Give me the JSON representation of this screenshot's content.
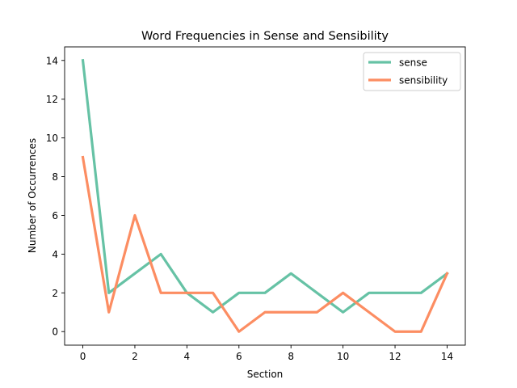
{
  "chart_data": {
    "type": "line",
    "title": "Word Frequencies in Sense and Sensibility",
    "xlabel": "Section",
    "ylabel": "Number of Occurrences",
    "x": [
      0,
      1,
      2,
      3,
      4,
      5,
      6,
      7,
      8,
      9,
      10,
      11,
      12,
      13,
      14
    ],
    "xlim": [
      -0.7,
      14.7
    ],
    "ylim": [
      -0.7,
      14.7
    ],
    "xticks": [
      0,
      2,
      4,
      6,
      8,
      10,
      12,
      14
    ],
    "yticks": [
      0,
      2,
      4,
      6,
      8,
      10,
      12,
      14
    ],
    "grid": false,
    "legend_position": "top-right",
    "series": [
      {
        "name": "sense",
        "color": "#66c2a5",
        "values": [
          14,
          2,
          3,
          4,
          2,
          1,
          2,
          2,
          3,
          2,
          1,
          2,
          2,
          2,
          3
        ]
      },
      {
        "name": "sensibility",
        "color": "#fc8d62",
        "values": [
          9,
          1,
          6,
          2,
          2,
          2,
          0,
          1,
          1,
          1,
          2,
          1,
          0,
          0,
          3
        ]
      }
    ]
  }
}
